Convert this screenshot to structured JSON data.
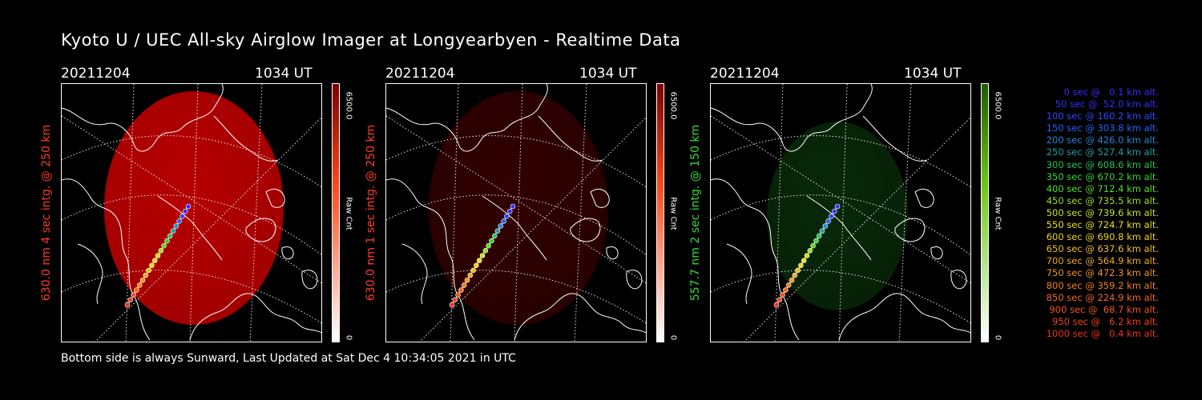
{
  "title": "Kyoto U / UEC All-sky Airglow Imager at Longyearbyen - Realtime Data",
  "footer": "Bottom side is always Sunward, Last Updated at Sat Dec  4 10:34:05 2021 in UTC",
  "panels": [
    {
      "date": "20211204",
      "ut": "1034 UT",
      "ylabel": "630.0 nm 4 sec intg. @ 250 km",
      "cbar_max": "6500.0",
      "cbar_label": "Raw Cnt",
      "cbar_min": "0",
      "color": "#ff3a2a",
      "glow": "#c00000",
      "glow_level": 0.85
    },
    {
      "date": "20211204",
      "ut": "1034 UT",
      "ylabel": "630.0 nm 1 sec intg. @ 250 km",
      "cbar_max": "6500.0",
      "cbar_label": "Raw Cnt",
      "cbar_min": "0",
      "color": "#ff3a2a",
      "glow": "#5a0000",
      "glow_level": 0.45
    },
    {
      "date": "20211204",
      "ut": "1034 UT",
      "ylabel": "557.7 nm 2 sec intg. @ 150 km",
      "cbar_max": "6500.0",
      "cbar_label": "Raw Cnt",
      "cbar_min": "0",
      "color": "#33dd33",
      "glow": "#0f4a0f",
      "glow_level": 0.45
    }
  ],
  "legend": [
    {
      "text": "0 sec @   0.1 km alt.",
      "color": "#3a2bff"
    },
    {
      "text": "50 sec @  52.0 km alt.",
      "color": "#3a2bff"
    },
    {
      "text": "100 sec @ 160.2 km alt.",
      "color": "#2a4bff"
    },
    {
      "text": "150 sec @ 303.8 km alt.",
      "color": "#1f66ff"
    },
    {
      "text": "200 sec @ 426.0 km alt.",
      "color": "#1f88dd"
    },
    {
      "text": "250 sec @ 527.4 km alt.",
      "color": "#1fa0a0"
    },
    {
      "text": "300 sec @ 608.6 km alt.",
      "color": "#22c455"
    },
    {
      "text": "350 sec @ 670.2 km alt.",
      "color": "#2fd82f"
    },
    {
      "text": "400 sec @ 712.4 km alt.",
      "color": "#55e01f"
    },
    {
      "text": "450 sec @ 735.5 km alt.",
      "color": "#9ae01a"
    },
    {
      "text": "500 sec @ 739.6 km alt.",
      "color": "#c8e41a"
    },
    {
      "text": "550 sec @ 724.7 km alt.",
      "color": "#e8e01a"
    },
    {
      "text": "600 sec @ 690.8 km alt.",
      "color": "#f2d21a"
    },
    {
      "text": "650 sec @ 637.6 km alt.",
      "color": "#f2c01a"
    },
    {
      "text": "700 sec @ 564.9 km alt.",
      "color": "#f2aa1a"
    },
    {
      "text": "750 sec @ 472.3 km alt.",
      "color": "#f2951a"
    },
    {
      "text": "800 sec @ 359.2 km alt.",
      "color": "#f2801a"
    },
    {
      "text": "850 sec @ 224.9 km alt.",
      "color": "#f26a1a"
    },
    {
      "text": "900 sec @  68.7 km alt.",
      "color": "#f2541a"
    },
    {
      "text": "950 sec @   6.2 km alt.",
      "color": "#f2401a"
    },
    {
      "text": "1000 sec @   0.4 km alt.",
      "color": "#f2301a"
    }
  ]
}
